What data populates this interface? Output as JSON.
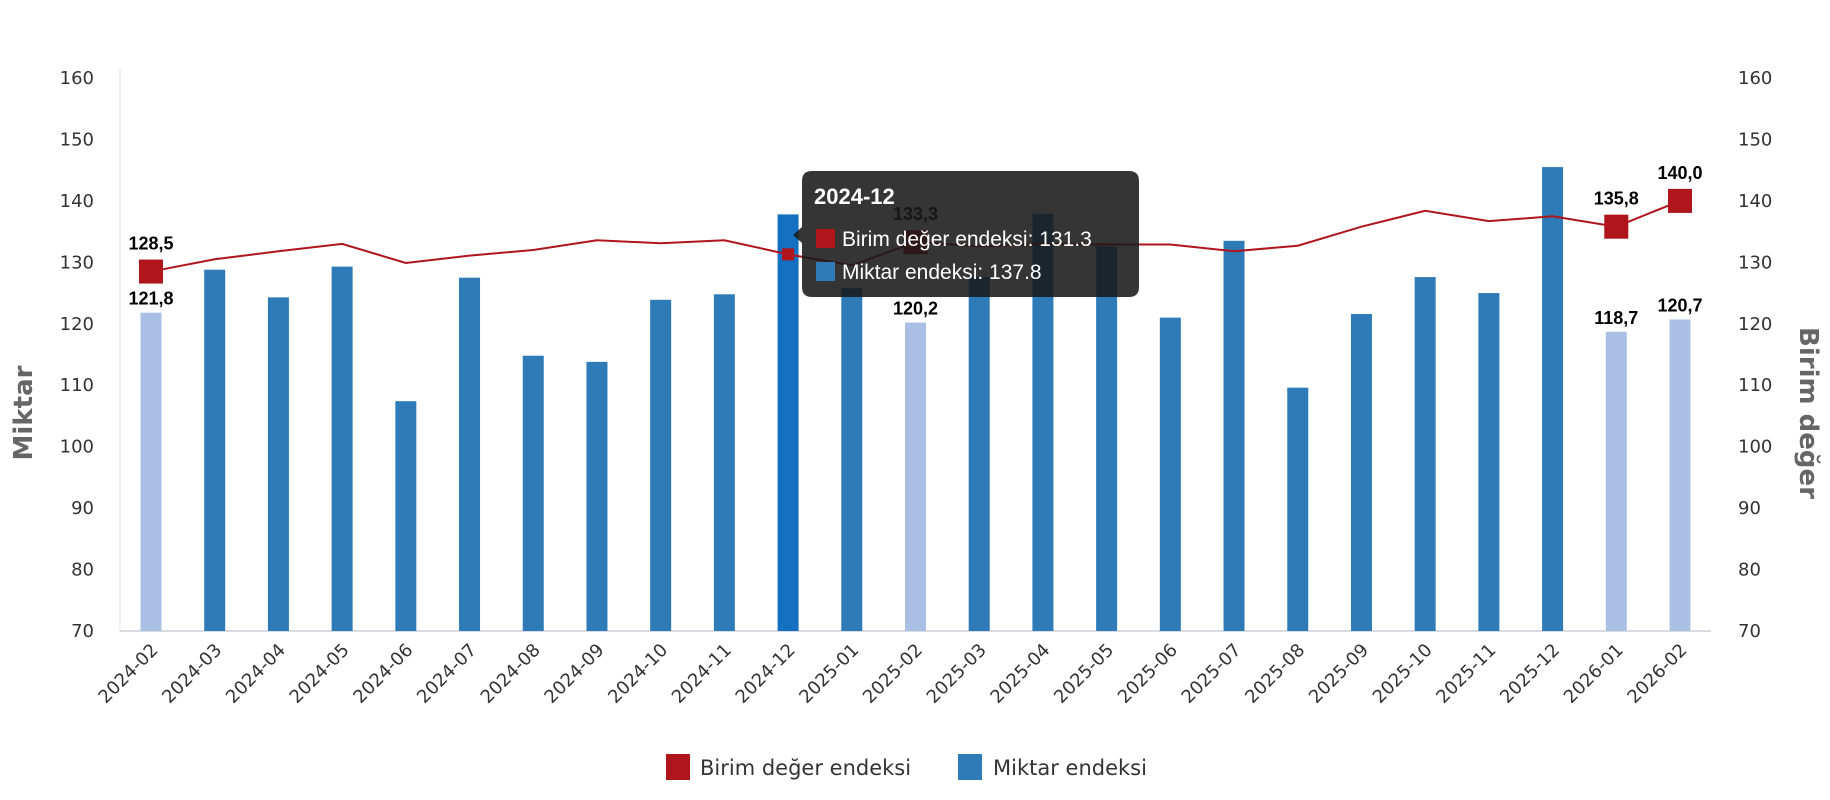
{
  "chart_data": {
    "type": "bar+line",
    "categories": [
      "2024-02",
      "2024-03",
      "2024-04",
      "2024-05",
      "2024-06",
      "2024-07",
      "2024-08",
      "2024-09",
      "2024-10",
      "2024-11",
      "2024-12",
      "2025-01",
      "2025-02",
      "2025-03",
      "2025-04",
      "2025-05",
      "2025-06",
      "2025-07",
      "2025-08",
      "2025-09",
      "2025-10",
      "2025-11",
      "2025-12",
      "2026-01",
      "2026-02"
    ],
    "series": [
      {
        "name": "Birim değer endeksi",
        "type": "line",
        "axis": "right",
        "color": "#b0151c",
        "values": [
          128.5,
          130.5,
          131.8,
          133.0,
          129.9,
          131.1,
          132.0,
          133.6,
          133.1,
          133.6,
          131.3,
          129.5,
          133.3,
          132.6,
          133.0,
          132.9,
          132.9,
          131.8,
          132.7,
          135.8,
          138.4,
          136.7,
          137.5,
          135.8,
          140.0
        ]
      },
      {
        "name": "Miktar endeksi",
        "type": "bar",
        "axis": "left",
        "color": "#2e7bb8",
        "highlight_color": "#a9c0e4",
        "values": [
          121.8,
          128.8,
          124.3,
          129.3,
          107.4,
          127.5,
          114.8,
          113.8,
          123.9,
          124.8,
          137.8,
          125.8,
          120.2,
          127.6,
          137.9,
          132.6,
          121.0,
          133.5,
          109.6,
          121.6,
          127.6,
          125.0,
          145.5,
          118.7,
          120.7
        ]
      }
    ],
    "highlighted_categories": [
      "2024-02",
      "2025-02",
      "2026-01",
      "2026-02"
    ],
    "data_labels": [
      {
        "category": "2024-02",
        "line": "128,5",
        "bar": "121,8"
      },
      {
        "category": "2025-02",
        "line": "133,3",
        "bar": "120,2"
      },
      {
        "category": "2026-01",
        "line": "135,8",
        "bar": "118,7"
      },
      {
        "category": "2026-02",
        "line": "140,0",
        "bar": "120,7"
      }
    ],
    "ylabel_left": "Miktar",
    "ylabel_right": "Birim değer",
    "ylim": [
      70,
      160
    ],
    "yticks": [
      "70",
      "80",
      "90",
      "100",
      "110",
      "120",
      "130",
      "140",
      "150",
      "160"
    ],
    "legend": {
      "position": "bottom",
      "items": [
        "Birim değer endeksi",
        "Miktar endeksi"
      ]
    },
    "grid": false
  },
  "tooltip": {
    "title": "2024-12",
    "category_index": 10,
    "rows": [
      "Birim değer endeksi: 131.3",
      "Miktar endeksi: 137.8"
    ]
  }
}
